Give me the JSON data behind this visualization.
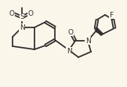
{
  "bg_color": "#fbf6ea",
  "bond_color": "#2d2d2d",
  "lw": 1.25,
  "figsize": [
    1.62,
    1.11
  ],
  "dpi": 100,
  "xlim": [
    0,
    162
  ],
  "ylim": [
    0,
    111
  ]
}
